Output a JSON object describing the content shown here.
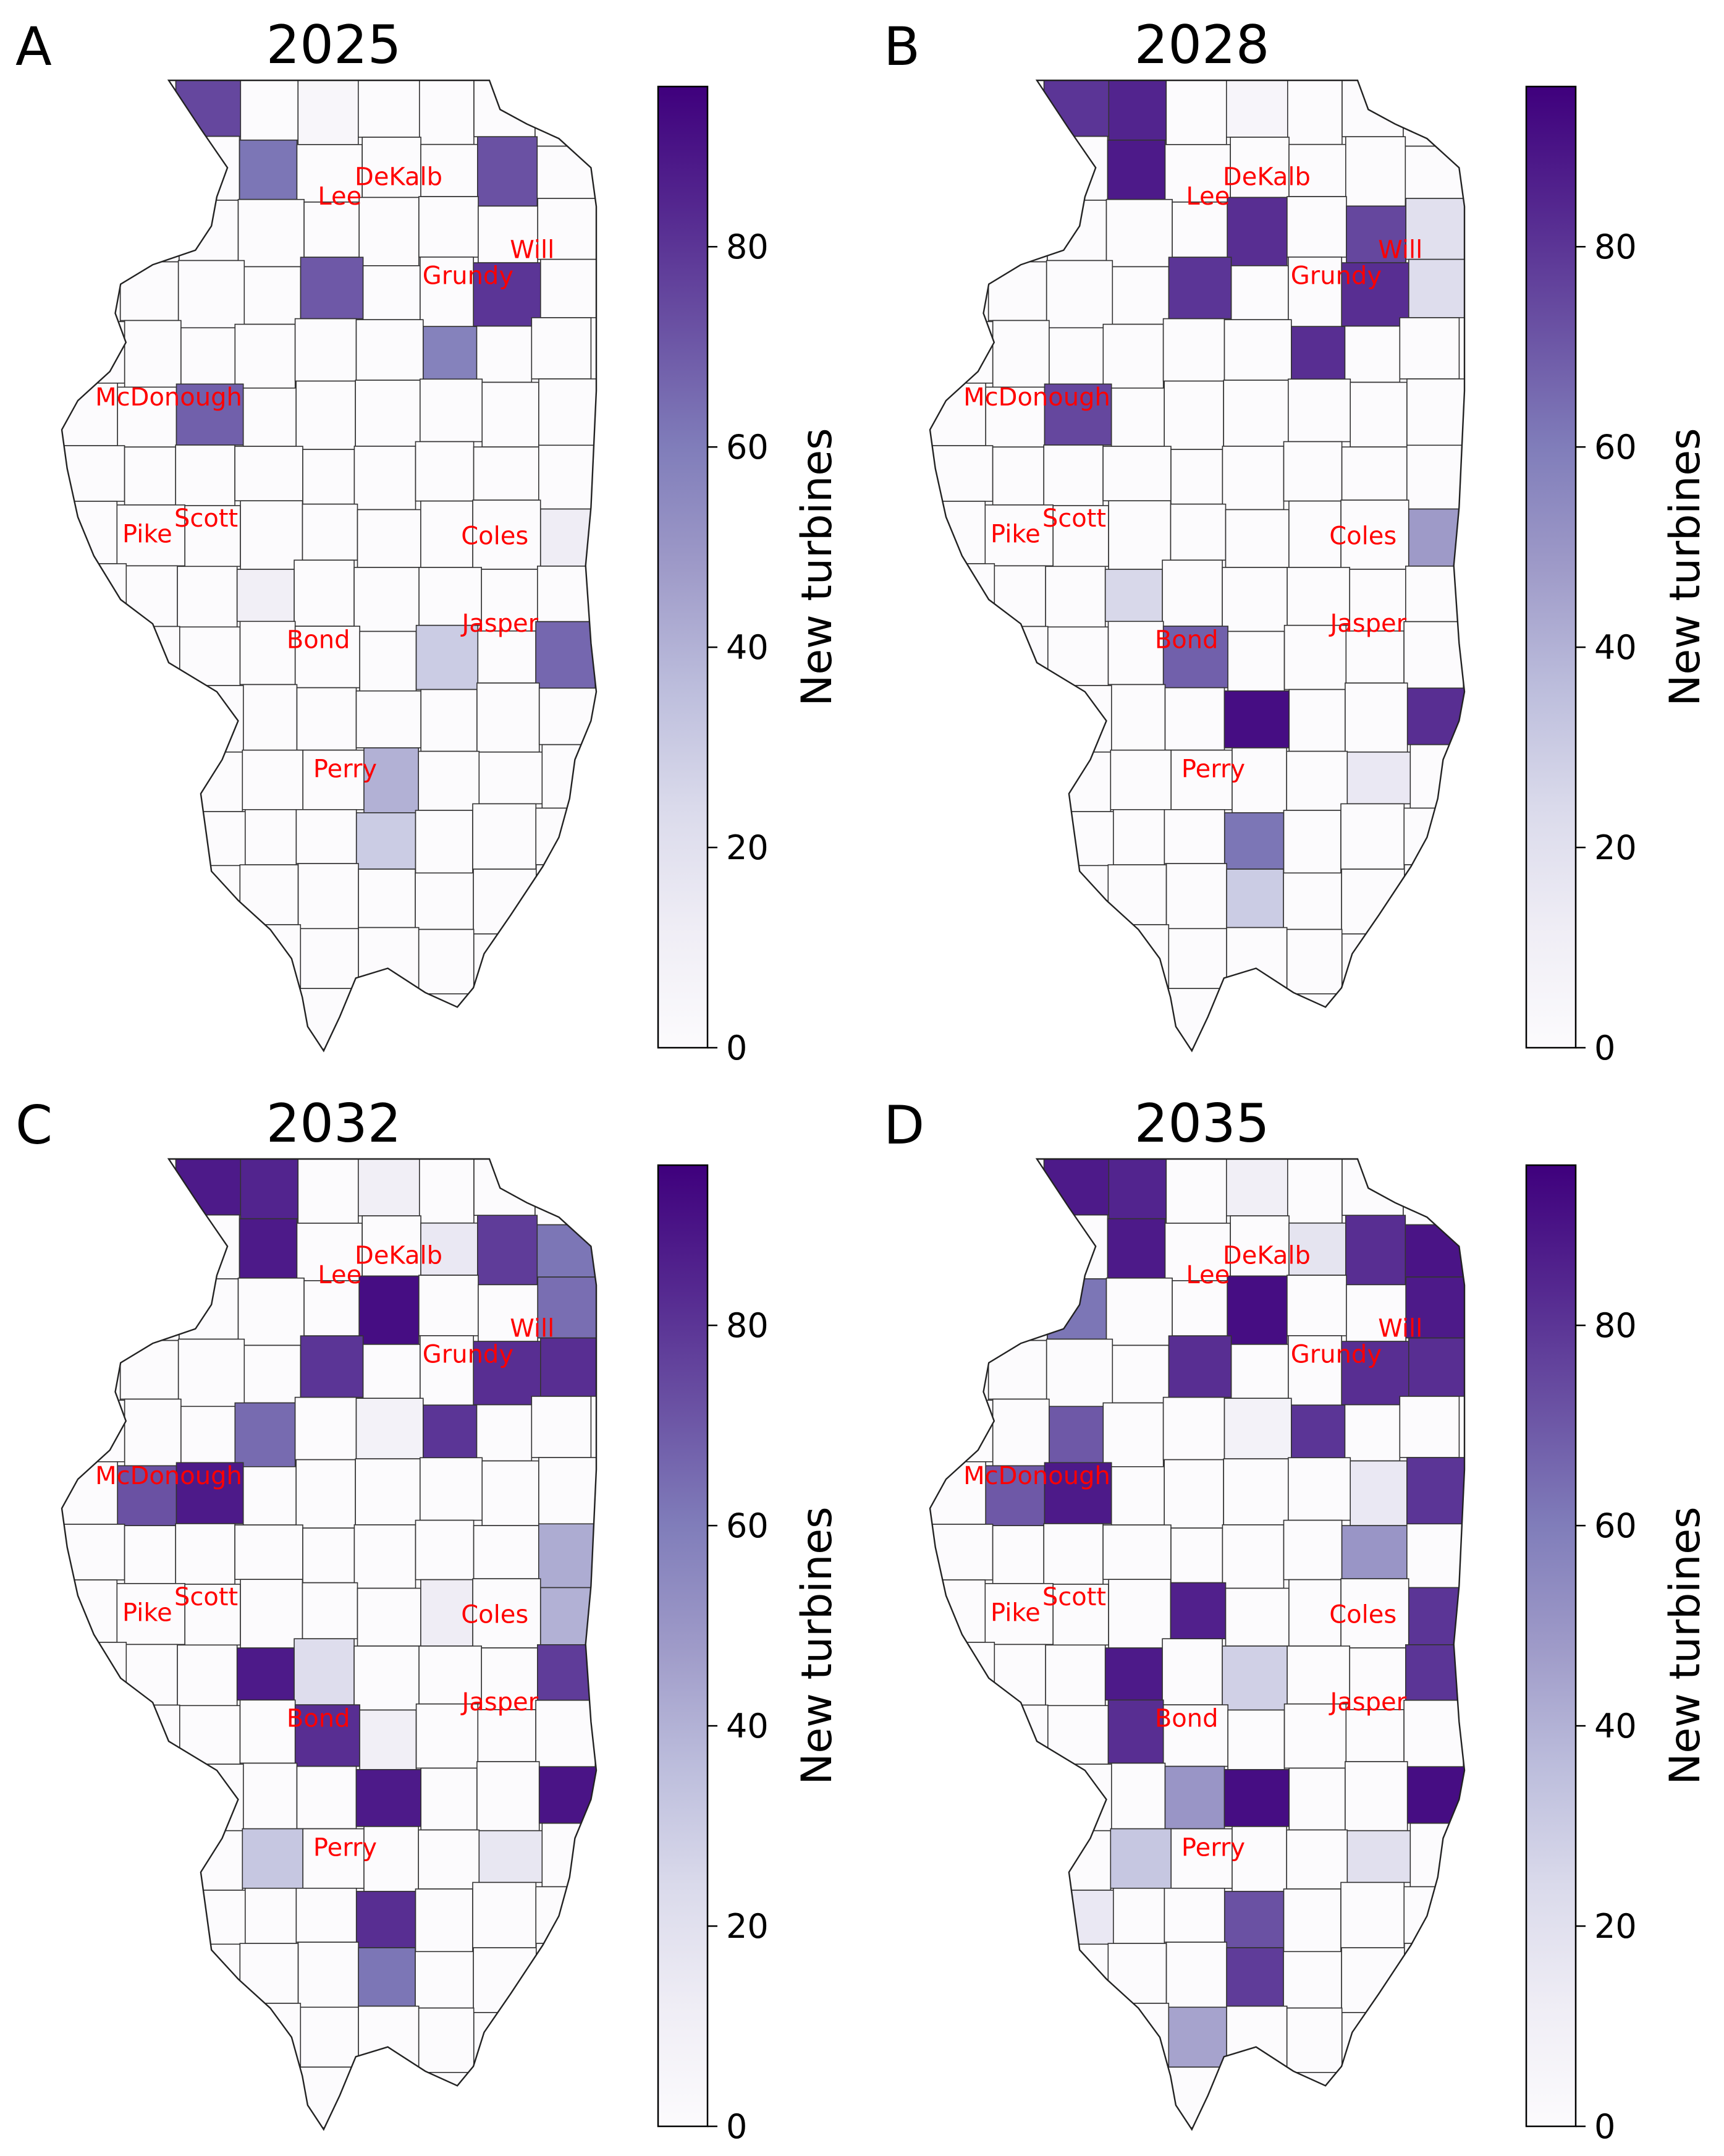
{
  "figure": {
    "colorbar_label": "New turbines",
    "colorbar_ticks": [
      0,
      20,
      40,
      60,
      80
    ],
    "colorbar_max": 96,
    "colormap": [
      "#fcfbfd",
      "#efedf5",
      "#dadaeb",
      "#bcbddc",
      "#9e9ac8",
      "#807dba",
      "#6a51a3",
      "#54278f",
      "#3f007d"
    ],
    "label_color": "#ff0000",
    "county_edge_color": "#333333"
  },
  "panels": [
    {
      "letter": "A",
      "year": "2025",
      "county_labels": [
        "DeKalb",
        "Lee",
        "Will",
        "Grundy",
        "McDonough",
        "Scott",
        "Pike",
        "Coles",
        "Jasper",
        "Bond",
        "Perry"
      ],
      "highlighted": [
        {
          "col": 2,
          "row": 0,
          "value": 75
        },
        {
          "col": 4,
          "row": 0,
          "value": 4
        },
        {
          "col": 3,
          "row": 1,
          "value": 62
        },
        {
          "col": 7,
          "row": 1,
          "value": 72
        },
        {
          "col": 4,
          "row": 3,
          "value": 70
        },
        {
          "col": 7,
          "row": 3,
          "value": 80
        },
        {
          "col": 6,
          "row": 4,
          "value": 58
        },
        {
          "col": 2,
          "row": 5,
          "value": 68
        },
        {
          "col": 8,
          "row": 7,
          "value": 12
        },
        {
          "col": 3,
          "row": 8,
          "value": 10
        },
        {
          "col": 6,
          "row": 9,
          "value": 30
        },
        {
          "col": 8,
          "row": 9,
          "value": 66
        },
        {
          "col": 5,
          "row": 11,
          "value": 40
        },
        {
          "col": 5,
          "row": 12,
          "value": 30
        }
      ]
    },
    {
      "letter": "B",
      "year": "2028",
      "county_labels": [
        "DeKalb",
        "Lee",
        "Will",
        "Grundy",
        "McDonough",
        "Scott",
        "Pike",
        "Coles",
        "Jasper",
        "Bond",
        "Perry"
      ],
      "highlighted": [
        {
          "col": 2,
          "row": 0,
          "value": 80
        },
        {
          "col": 3,
          "row": 0,
          "value": 85
        },
        {
          "col": 5,
          "row": 0,
          "value": 5
        },
        {
          "col": 3,
          "row": 1,
          "value": 88
        },
        {
          "col": 5,
          "row": 2,
          "value": 82
        },
        {
          "col": 7,
          "row": 2,
          "value": 75
        },
        {
          "col": 8,
          "row": 2,
          "value": 20
        },
        {
          "col": 4,
          "row": 3,
          "value": 80
        },
        {
          "col": 7,
          "row": 3,
          "value": 82
        },
        {
          "col": 8,
          "row": 3,
          "value": 22
        },
        {
          "col": 6,
          "row": 4,
          "value": 82
        },
        {
          "col": 2,
          "row": 5,
          "value": 75
        },
        {
          "col": 8,
          "row": 7,
          "value": 48
        },
        {
          "col": 3,
          "row": 8,
          "value": 25
        },
        {
          "col": 4,
          "row": 9,
          "value": 68
        },
        {
          "col": 5,
          "row": 10,
          "value": 92
        },
        {
          "col": 8,
          "row": 10,
          "value": 82
        },
        {
          "col": 7,
          "row": 11,
          "value": 15
        },
        {
          "col": 5,
          "row": 12,
          "value": 62
        },
        {
          "col": 5,
          "row": 13,
          "value": 30
        }
      ]
    },
    {
      "letter": "C",
      "year": "2032",
      "county_labels": [
        "DeKalb",
        "Lee",
        "Will",
        "Grundy",
        "McDonough",
        "Scott",
        "Pike",
        "Coles",
        "Jasper",
        "Bond",
        "Perry"
      ],
      "highlighted": [
        {
          "col": 2,
          "row": 0,
          "value": 88
        },
        {
          "col": 3,
          "row": 0,
          "value": 85
        },
        {
          "col": 5,
          "row": 0,
          "value": 10
        },
        {
          "col": 3,
          "row": 1,
          "value": 88
        },
        {
          "col": 6,
          "row": 1,
          "value": 15
        },
        {
          "col": 7,
          "row": 1,
          "value": 78
        },
        {
          "col": 8,
          "row": 1,
          "value": 62
        },
        {
          "col": 5,
          "row": 2,
          "value": 92
        },
        {
          "col": 8,
          "row": 2,
          "value": 64
        },
        {
          "col": 4,
          "row": 3,
          "value": 80
        },
        {
          "col": 7,
          "row": 3,
          "value": 82
        },
        {
          "col": 8,
          "row": 3,
          "value": 82
        },
        {
          "col": 3,
          "row": 4,
          "value": 65
        },
        {
          "col": 5,
          "row": 4,
          "value": 8
        },
        {
          "col": 6,
          "row": 4,
          "value": 80
        },
        {
          "col": 1,
          "row": 5,
          "value": 72
        },
        {
          "col": 2,
          "row": 5,
          "value": 88
        },
        {
          "col": 8,
          "row": 6,
          "value": 42
        },
        {
          "col": 6,
          "row": 7,
          "value": 12
        },
        {
          "col": 8,
          "row": 7,
          "value": 40
        },
        {
          "col": 3,
          "row": 8,
          "value": 88
        },
        {
          "col": 4,
          "row": 8,
          "value": 22
        },
        {
          "col": 8,
          "row": 8,
          "value": 78
        },
        {
          "col": 4,
          "row": 9,
          "value": 82
        },
        {
          "col": 5,
          "row": 9,
          "value": 10
        },
        {
          "col": 5,
          "row": 10,
          "value": 88
        },
        {
          "col": 8,
          "row": 10,
          "value": 90
        },
        {
          "col": 3,
          "row": 11,
          "value": 32
        },
        {
          "col": 7,
          "row": 11,
          "value": 16
        },
        {
          "col": 5,
          "row": 12,
          "value": 82
        },
        {
          "col": 5,
          "row": 13,
          "value": 62
        }
      ]
    },
    {
      "letter": "D",
      "year": "2035",
      "county_labels": [
        "DeKalb",
        "Lee",
        "Will",
        "Grundy",
        "McDonough",
        "Scott",
        "Pike",
        "Coles",
        "Jasper",
        "Bond",
        "Perry"
      ],
      "highlighted": [
        {
          "col": 2,
          "row": 0,
          "value": 88
        },
        {
          "col": 3,
          "row": 0,
          "value": 85
        },
        {
          "col": 5,
          "row": 0,
          "value": 10
        },
        {
          "col": 3,
          "row": 1,
          "value": 88
        },
        {
          "col": 6,
          "row": 1,
          "value": 18
        },
        {
          "col": 7,
          "row": 1,
          "value": 82
        },
        {
          "col": 8,
          "row": 1,
          "value": 90
        },
        {
          "col": 2,
          "row": 2,
          "value": 62
        },
        {
          "col": 5,
          "row": 2,
          "value": 92
        },
        {
          "col": 8,
          "row": 2,
          "value": 88
        },
        {
          "col": 4,
          "row": 3,
          "value": 82
        },
        {
          "col": 7,
          "row": 3,
          "value": 82
        },
        {
          "col": 8,
          "row": 3,
          "value": 82
        },
        {
          "col": 2,
          "row": 4,
          "value": 70
        },
        {
          "col": 5,
          "row": 4,
          "value": 8
        },
        {
          "col": 6,
          "row": 4,
          "value": 80
        },
        {
          "col": 1,
          "row": 5,
          "value": 70
        },
        {
          "col": 2,
          "row": 5,
          "value": 88
        },
        {
          "col": 7,
          "row": 5,
          "value": 15
        },
        {
          "col": 8,
          "row": 5,
          "value": 80
        },
        {
          "col": 7,
          "row": 6,
          "value": 50
        },
        {
          "col": 4,
          "row": 7,
          "value": 86
        },
        {
          "col": 8,
          "row": 7,
          "value": 80
        },
        {
          "col": 3,
          "row": 8,
          "value": 88
        },
        {
          "col": 5,
          "row": 8,
          "value": 28
        },
        {
          "col": 8,
          "row": 8,
          "value": 80
        },
        {
          "col": 3,
          "row": 9,
          "value": 82
        },
        {
          "col": 4,
          "row": 10,
          "value": 50
        },
        {
          "col": 5,
          "row": 10,
          "value": 92
        },
        {
          "col": 8,
          "row": 10,
          "value": 92
        },
        {
          "col": 3,
          "row": 11,
          "value": 32
        },
        {
          "col": 7,
          "row": 11,
          "value": 20
        },
        {
          "col": 2,
          "row": 12,
          "value": 15
        },
        {
          "col": 5,
          "row": 12,
          "value": 72
        },
        {
          "col": 5,
          "row": 13,
          "value": 78
        },
        {
          "col": 4,
          "row": 14,
          "value": 45
        }
      ]
    }
  ]
}
